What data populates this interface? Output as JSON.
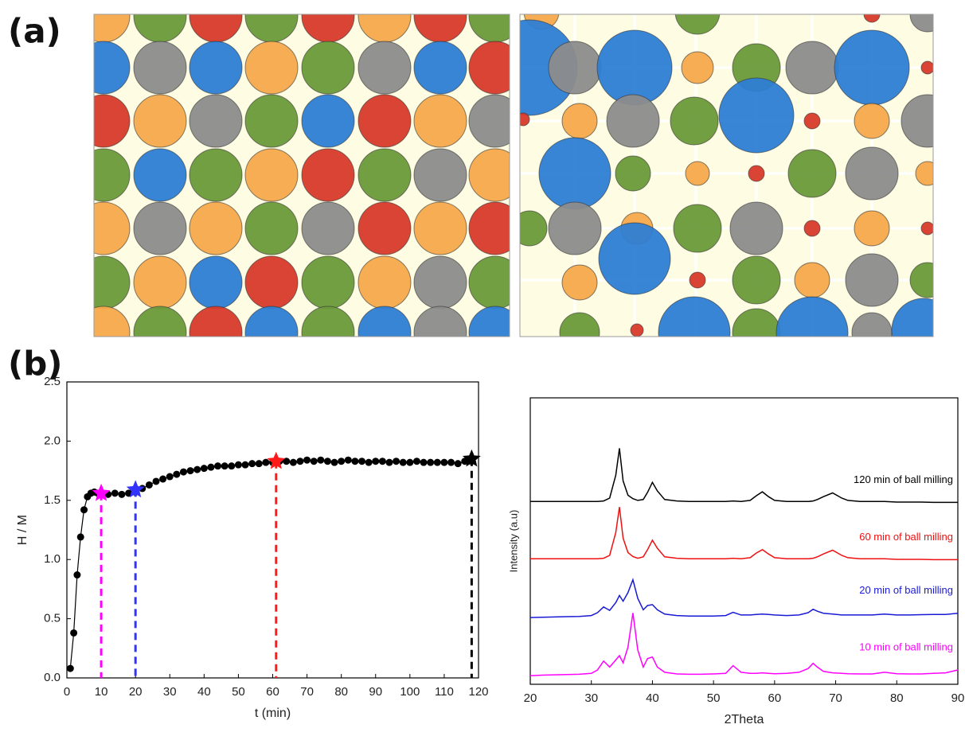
{
  "panels": {
    "a": "(a)",
    "b": "(b)"
  },
  "chart_data": [
    {
      "type": "line",
      "xlabel": "t (min)",
      "ylabel": "H / M",
      "color": "#000000",
      "show_points": true,
      "xlim": [
        0,
        120
      ],
      "xticks": [
        0,
        10,
        20,
        30,
        40,
        50,
        60,
        70,
        80,
        90,
        100,
        110,
        120
      ],
      "ylim": [
        0,
        2.5
      ],
      "yticks": [
        {
          "value": 0,
          "label": "0.0"
        },
        0.5,
        {
          "value": 1,
          "label": "1.0"
        },
        1.5,
        {
          "value": 2,
          "label": "2.0"
        },
        2.5
      ],
      "x": [
        1,
        2,
        3,
        4,
        5,
        6,
        7,
        8,
        9,
        10,
        12,
        14,
        16,
        18,
        20,
        22,
        24,
        26,
        28,
        30,
        32,
        34,
        36,
        38,
        40,
        42,
        44,
        46,
        48,
        50,
        52,
        54,
        56,
        58,
        60,
        62,
        64,
        66,
        68,
        70,
        72,
        74,
        76,
        78,
        80,
        82,
        84,
        86,
        88,
        90,
        92,
        94,
        96,
        98,
        100,
        102,
        104,
        106,
        108,
        110,
        112,
        114,
        116,
        118
      ],
      "values": [
        0.08,
        0.38,
        0.87,
        1.19,
        1.42,
        1.53,
        1.56,
        1.57,
        1.56,
        1.55,
        1.55,
        1.56,
        1.55,
        1.56,
        1.57,
        1.6,
        1.63,
        1.66,
        1.68,
        1.7,
        1.72,
        1.74,
        1.75,
        1.76,
        1.77,
        1.78,
        1.79,
        1.79,
        1.79,
        1.8,
        1.8,
        1.81,
        1.81,
        1.82,
        1.82,
        1.83,
        1.83,
        1.82,
        1.83,
        1.84,
        1.83,
        1.84,
        1.83,
        1.82,
        1.83,
        1.84,
        1.83,
        1.83,
        1.82,
        1.83,
        1.83,
        1.82,
        1.83,
        1.82,
        1.82,
        1.83,
        1.82,
        1.82,
        1.82,
        1.82,
        1.82,
        1.81,
        1.83,
        1.83
      ],
      "markers": [
        {
          "x": 10,
          "y": 1.56,
          "color": "#ff00ff"
        },
        {
          "x": 20,
          "y": 1.59,
          "color": "#3333ff"
        },
        {
          "x": 61,
          "y": 1.83,
          "color": "#ff1a1a"
        },
        {
          "x": 118,
          "y": 1.85,
          "color": "#000000"
        }
      ]
    },
    {
      "type": "line",
      "xlabel": "2Theta",
      "ylabel": "Intensity (a.u)",
      "xlim": [
        20,
        90
      ],
      "xticks": [
        20,
        30,
        40,
        50,
        60,
        70,
        80,
        90
      ],
      "ylim": [
        0,
        10
      ],
      "x": [
        20,
        22,
        24,
        26,
        28,
        30,
        31,
        32,
        33,
        34,
        34.6,
        35.2,
        36,
        36.8,
        37.6,
        38.5,
        39.2,
        40,
        40.8,
        42,
        44,
        46,
        48,
        50,
        52,
        53.2,
        54.5,
        56,
        57,
        58,
        59,
        60,
        62,
        64,
        65.5,
        66.3,
        67,
        68,
        69.5,
        71,
        72,
        74,
        76,
        78,
        80,
        82,
        84,
        86,
        88,
        90
      ],
      "series": [
        {
          "name": "120 min of ball milling",
          "color": "#000000",
          "values": [
            6.38,
            6.38,
            6.38,
            6.38,
            6.38,
            6.38,
            6.38,
            6.4,
            6.5,
            7.3,
            8.24,
            7.1,
            6.6,
            6.48,
            6.42,
            6.45,
            6.7,
            7.05,
            6.75,
            6.45,
            6.4,
            6.38,
            6.38,
            6.38,
            6.38,
            6.4,
            6.38,
            6.42,
            6.58,
            6.72,
            6.55,
            6.42,
            6.38,
            6.38,
            6.38,
            6.4,
            6.45,
            6.55,
            6.68,
            6.5,
            6.42,
            6.38,
            6.38,
            6.38,
            6.36,
            6.36,
            6.36,
            6.35,
            6.35,
            6.35
          ]
        },
        {
          "name": "60 min of ball milling",
          "color": "#ee1111",
          "values": [
            4.38,
            4.38,
            4.38,
            4.38,
            4.38,
            4.38,
            4.38,
            4.4,
            4.5,
            5.3,
            6.19,
            5.1,
            4.6,
            4.46,
            4.4,
            4.45,
            4.7,
            5.03,
            4.75,
            4.45,
            4.4,
            4.38,
            4.38,
            4.38,
            4.38,
            4.4,
            4.38,
            4.42,
            4.58,
            4.7,
            4.55,
            4.42,
            4.38,
            4.38,
            4.38,
            4.4,
            4.45,
            4.55,
            4.68,
            4.5,
            4.42,
            4.38,
            4.38,
            4.38,
            4.36,
            4.36,
            4.36,
            4.35,
            4.35,
            4.35
          ]
        },
        {
          "name": "20 min of ball milling",
          "color": "#1a1ad6",
          "values": [
            2.33,
            2.34,
            2.35,
            2.36,
            2.37,
            2.4,
            2.5,
            2.7,
            2.58,
            2.85,
            3.1,
            2.9,
            3.2,
            3.65,
            3.0,
            2.6,
            2.75,
            2.78,
            2.6,
            2.45,
            2.4,
            2.38,
            2.38,
            2.38,
            2.4,
            2.51,
            2.42,
            2.42,
            2.44,
            2.45,
            2.44,
            2.42,
            2.4,
            2.42,
            2.5,
            2.62,
            2.55,
            2.48,
            2.45,
            2.42,
            2.42,
            2.42,
            2.42,
            2.45,
            2.42,
            2.42,
            2.43,
            2.44,
            2.44,
            2.48
          ]
        },
        {
          "name": "10 min of ball milling",
          "color": "#ff00ff",
          "values": [
            0.3,
            0.32,
            0.33,
            0.34,
            0.35,
            0.38,
            0.5,
            0.81,
            0.6,
            0.85,
            1.0,
            0.75,
            1.3,
            2.49,
            1.2,
            0.6,
            0.9,
            0.95,
            0.6,
            0.42,
            0.36,
            0.35,
            0.35,
            0.36,
            0.38,
            0.65,
            0.42,
            0.38,
            0.38,
            0.4,
            0.38,
            0.37,
            0.38,
            0.42,
            0.55,
            0.73,
            0.6,
            0.45,
            0.4,
            0.38,
            0.37,
            0.36,
            0.36,
            0.42,
            0.37,
            0.36,
            0.36,
            0.38,
            0.4,
            0.5
          ]
        }
      ]
    }
  ]
}
